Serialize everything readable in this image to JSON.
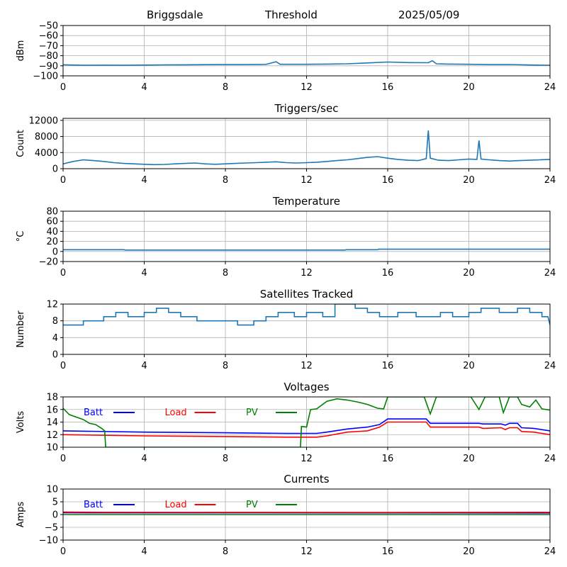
{
  "header": {
    "station": "Briggsdale",
    "mode": "Threshold",
    "date": "2025/05/09"
  },
  "colors": {
    "series": "#1f77b4",
    "batt": "#0000ff",
    "load": "#ff0000",
    "pv": "#008000",
    "grid": "#b0b0b0",
    "axis": "#000000"
  },
  "chart_data": [
    {
      "id": "noise",
      "type": "line",
      "title": "",
      "xlabel": "",
      "ylabel": "dBm",
      "xlim": [
        0,
        24
      ],
      "ylim": [
        -100,
        -50
      ],
      "xticks": [
        0,
        4,
        8,
        12,
        16,
        20,
        24
      ],
      "yticks": [
        -100,
        -90,
        -80,
        -70,
        -60,
        -50
      ],
      "grid": true,
      "series": [
        {
          "values": [
            [
              0,
              -89
            ],
            [
              1,
              -89.5
            ],
            [
              2,
              -89.4
            ],
            [
              3,
              -89.5
            ],
            [
              4,
              -89.3
            ],
            [
              5,
              -89.1
            ],
            [
              6,
              -89
            ],
            [
              7,
              -88.9
            ],
            [
              8,
              -88.8
            ],
            [
              9,
              -88.8
            ],
            [
              10,
              -88.6
            ],
            [
              10.5,
              -86
            ],
            [
              10.7,
              -88.5
            ],
            [
              12,
              -88.5
            ],
            [
              13,
              -88.3
            ],
            [
              14,
              -88
            ],
            [
              15,
              -87.2
            ],
            [
              16,
              -86.3
            ],
            [
              17,
              -86.8
            ],
            [
              18,
              -87
            ],
            [
              18.2,
              -85
            ],
            [
              18.4,
              -88
            ],
            [
              19,
              -88.3
            ],
            [
              20,
              -88.5
            ],
            [
              21,
              -88.8
            ],
            [
              22,
              -88.7
            ],
            [
              23,
              -89.2
            ],
            [
              24,
              -89.5
            ]
          ]
        }
      ]
    },
    {
      "id": "triggers",
      "type": "line",
      "title": "Triggers/sec",
      "xlabel": "",
      "ylabel": "Count",
      "xlim": [
        0,
        24
      ],
      "ylim": [
        0,
        12500
      ],
      "xticks": [
        0,
        4,
        8,
        12,
        16,
        20,
        24
      ],
      "yticks": [
        0,
        4000,
        8000,
        12000
      ],
      "grid": true,
      "series": [
        {
          "values": [
            [
              0,
              1200
            ],
            [
              0.5,
              1800
            ],
            [
              1,
              2200
            ],
            [
              1.5,
              2000
            ],
            [
              2,
              1800
            ],
            [
              2.5,
              1500
            ],
            [
              3,
              1300
            ],
            [
              3.5,
              1200
            ],
            [
              4,
              1100
            ],
            [
              4.5,
              1000
            ],
            [
              5,
              1050
            ],
            [
              5.5,
              1200
            ],
            [
              6,
              1300
            ],
            [
              6.5,
              1400
            ],
            [
              7,
              1200
            ],
            [
              7.5,
              1100
            ],
            [
              8,
              1200
            ],
            [
              8.5,
              1300
            ],
            [
              9,
              1400
            ],
            [
              9.5,
              1500
            ],
            [
              10,
              1600
            ],
            [
              10.5,
              1700
            ],
            [
              11,
              1500
            ],
            [
              11.5,
              1400
            ],
            [
              12,
              1500
            ],
            [
              12.5,
              1600
            ],
            [
              13,
              1800
            ],
            [
              13.5,
              2000
            ],
            [
              14,
              2200
            ],
            [
              14.5,
              2500
            ],
            [
              15,
              2800
            ],
            [
              15.5,
              3000
            ],
            [
              16,
              2600
            ],
            [
              16.5,
              2300
            ],
            [
              17,
              2100
            ],
            [
              17.5,
              2000
            ],
            [
              17.9,
              2500
            ],
            [
              18,
              9500
            ],
            [
              18.1,
              2600
            ],
            [
              18.5,
              2100
            ],
            [
              19,
              2000
            ],
            [
              19.5,
              2200
            ],
            [
              20,
              2400
            ],
            [
              20.4,
              2300
            ],
            [
              20.5,
              7000
            ],
            [
              20.6,
              2400
            ],
            [
              21,
              2200
            ],
            [
              21.5,
              2000
            ],
            [
              22,
              1900
            ],
            [
              22.5,
              2000
            ],
            [
              23,
              2100
            ],
            [
              23.5,
              2200
            ],
            [
              24,
              2300
            ]
          ]
        }
      ]
    },
    {
      "id": "temperature",
      "type": "line",
      "title": "Temperature",
      "xlabel": "",
      "ylabel": "°C",
      "xlim": [
        0,
        24
      ],
      "ylim": [
        -20,
        80
      ],
      "xticks": [
        0,
        4,
        8,
        12,
        16,
        20,
        24
      ],
      "yticks": [
        -20,
        0,
        20,
        40,
        60,
        80
      ],
      "grid": true,
      "series": [
        {
          "values": [
            [
              0,
              3.5
            ],
            [
              3,
              3.5
            ],
            [
              3.05,
              2.8
            ],
            [
              13.9,
              2.8
            ],
            [
              13.95,
              3.5
            ],
            [
              15.5,
              3.5
            ],
            [
              15.55,
              4.5
            ],
            [
              24,
              4.5
            ]
          ]
        }
      ]
    },
    {
      "id": "satellites",
      "type": "line",
      "title": "Satellites Tracked",
      "xlabel": "",
      "ylabel": "Number",
      "xlim": [
        0,
        24
      ],
      "ylim": [
        0,
        12
      ],
      "xticks": [
        0,
        4,
        8,
        12,
        16,
        20,
        24
      ],
      "yticks": [
        0,
        4,
        8,
        12
      ],
      "grid": true,
      "series": [
        {
          "values": [
            [
              0,
              7
            ],
            [
              1,
              7
            ],
            [
              1,
              8
            ],
            [
              2,
              8
            ],
            [
              2,
              9
            ],
            [
              2.6,
              9
            ],
            [
              2.6,
              10
            ],
            [
              3.2,
              10
            ],
            [
              3.2,
              9
            ],
            [
              4,
              9
            ],
            [
              4,
              10
            ],
            [
              4.6,
              10
            ],
            [
              4.6,
              11
            ],
            [
              5.2,
              11
            ],
            [
              5.2,
              10
            ],
            [
              5.8,
              10
            ],
            [
              5.8,
              9
            ],
            [
              6.6,
              9
            ],
            [
              6.6,
              8
            ],
            [
              8,
              8
            ],
            [
              8,
              8
            ],
            [
              8.6,
              8
            ],
            [
              8.6,
              7
            ],
            [
              9.4,
              7
            ],
            [
              9.4,
              8
            ],
            [
              10,
              8
            ],
            [
              10,
              9
            ],
            [
              10.6,
              9
            ],
            [
              10.6,
              10
            ],
            [
              11.4,
              10
            ],
            [
              11.4,
              9
            ],
            [
              12,
              9
            ],
            [
              12,
              10
            ],
            [
              12.8,
              10
            ],
            [
              12.8,
              9
            ],
            [
              13.4,
              9
            ],
            [
              13.4,
              12
            ],
            [
              14.4,
              12
            ],
            [
              14.4,
              11
            ],
            [
              15,
              11
            ],
            [
              15,
              10
            ],
            [
              15.6,
              10
            ],
            [
              15.6,
              9
            ],
            [
              16.5,
              9
            ],
            [
              16.5,
              10
            ],
            [
              17.4,
              10
            ],
            [
              17.4,
              9
            ],
            [
              18.6,
              9
            ],
            [
              18.6,
              10
            ],
            [
              19.2,
              10
            ],
            [
              19.2,
              9
            ],
            [
              20,
              9
            ],
            [
              20,
              10
            ],
            [
              20.6,
              10
            ],
            [
              20.6,
              11
            ],
            [
              21.5,
              11
            ],
            [
              21.5,
              10
            ],
            [
              22.4,
              10
            ],
            [
              22.4,
              11
            ],
            [
              23,
              11
            ],
            [
              23,
              10
            ],
            [
              23.6,
              10
            ],
            [
              23.6,
              9
            ],
            [
              23.9,
              9
            ],
            [
              24,
              7
            ]
          ]
        }
      ]
    },
    {
      "id": "voltages",
      "type": "line",
      "title": "Voltages",
      "xlabel": "",
      "ylabel": "Volts",
      "xlim": [
        0,
        24
      ],
      "ylim": [
        10,
        18
      ],
      "xticks": [
        0,
        4,
        8,
        12,
        16,
        20,
        24
      ],
      "yticks": [
        10,
        12,
        14,
        16,
        18
      ],
      "grid": true,
      "legend_position": "top",
      "series": [
        {
          "name": "Batt",
          "color": "#0000ff",
          "values": [
            [
              0,
              12.6
            ],
            [
              4,
              12.4
            ],
            [
              8,
              12.3
            ],
            [
              11,
              12.2
            ],
            [
              12.5,
              12.2
            ],
            [
              13,
              12.4
            ],
            [
              14,
              12.9
            ],
            [
              15,
              13.2
            ],
            [
              15.6,
              13.6
            ],
            [
              16,
              14.5
            ],
            [
              17.9,
              14.5
            ],
            [
              18.1,
              13.8
            ],
            [
              20.5,
              13.8
            ],
            [
              20.7,
              13.7
            ],
            [
              21.6,
              13.7
            ],
            [
              21.8,
              13.5
            ],
            [
              22,
              13.8
            ],
            [
              22.4,
              13.8
            ],
            [
              22.6,
              13.1
            ],
            [
              23.2,
              13.0
            ],
            [
              24,
              12.6
            ]
          ]
        },
        {
          "name": "Load",
          "color": "#ff0000",
          "values": [
            [
              0,
              12.0
            ],
            [
              4,
              11.8
            ],
            [
              8,
              11.7
            ],
            [
              11,
              11.6
            ],
            [
              12.5,
              11.6
            ],
            [
              13,
              11.8
            ],
            [
              14,
              12.4
            ],
            [
              15,
              12.6
            ],
            [
              15.6,
              13.2
            ],
            [
              16,
              14.0
            ],
            [
              17.9,
              14.0
            ],
            [
              18.1,
              13.2
            ],
            [
              20.5,
              13.2
            ],
            [
              20.7,
              13.0
            ],
            [
              21.6,
              13.1
            ],
            [
              21.8,
              12.8
            ],
            [
              22,
              13.1
            ],
            [
              22.4,
              13.1
            ],
            [
              22.6,
              12.5
            ],
            [
              23.2,
              12.4
            ],
            [
              24,
              12.0
            ]
          ]
        },
        {
          "name": "PV",
          "color": "#008000",
          "values": [
            [
              0,
              16.2
            ],
            [
              0.3,
              15.2
            ],
            [
              1,
              14.4
            ],
            [
              1.3,
              13.8
            ],
            [
              1.6,
              13.6
            ],
            [
              1.9,
              13.0
            ],
            [
              2.05,
              12.6
            ],
            [
              2.1,
              10.0
            ],
            [
              11.7,
              10.0
            ],
            [
              11.75,
              13.3
            ],
            [
              12,
              13.2
            ],
            [
              12.2,
              16.0
            ],
            [
              12.5,
              16.1
            ],
            [
              13,
              17.3
            ],
            [
              13.5,
              17.7
            ],
            [
              14,
              17.5
            ],
            [
              14.5,
              17.2
            ],
            [
              15,
              16.8
            ],
            [
              15.5,
              16.2
            ],
            [
              15.8,
              16.1
            ],
            [
              16,
              18.0
            ],
            [
              17.8,
              18.0
            ],
            [
              18.1,
              15.3
            ],
            [
              18.4,
              18.0
            ],
            [
              20.1,
              18.0
            ],
            [
              20.5,
              16.0
            ],
            [
              20.8,
              18.0
            ],
            [
              21.5,
              18.0
            ],
            [
              21.7,
              15.5
            ],
            [
              22,
              18.0
            ],
            [
              22.4,
              18.0
            ],
            [
              22.6,
              16.8
            ],
            [
              23,
              16.4
            ],
            [
              23.3,
              17.5
            ],
            [
              23.6,
              16.1
            ],
            [
              24,
              15.9
            ]
          ]
        }
      ]
    },
    {
      "id": "currents",
      "type": "line",
      "title": "Currents",
      "xlabel": "",
      "ylabel": "Amps",
      "xlim": [
        0,
        24
      ],
      "ylim": [
        -10,
        10
      ],
      "xticks": [
        0,
        4,
        8,
        12,
        16,
        20,
        24
      ],
      "yticks": [
        -10,
        -5,
        0,
        5,
        10
      ],
      "grid": true,
      "legend_position": "top",
      "series": [
        {
          "name": "Batt",
          "color": "#0000ff",
          "values": [
            [
              0,
              0.7
            ],
            [
              24,
              0.6
            ]
          ]
        },
        {
          "name": "Load",
          "color": "#ff0000",
          "values": [
            [
              0,
              1.0
            ],
            [
              2,
              0.9
            ],
            [
              8,
              0.85
            ],
            [
              16,
              0.8
            ],
            [
              24,
              0.9
            ]
          ]
        },
        {
          "name": "PV",
          "color": "#008000",
          "values": [
            [
              0,
              0.0
            ],
            [
              24,
              0.0
            ]
          ]
        }
      ]
    }
  ]
}
